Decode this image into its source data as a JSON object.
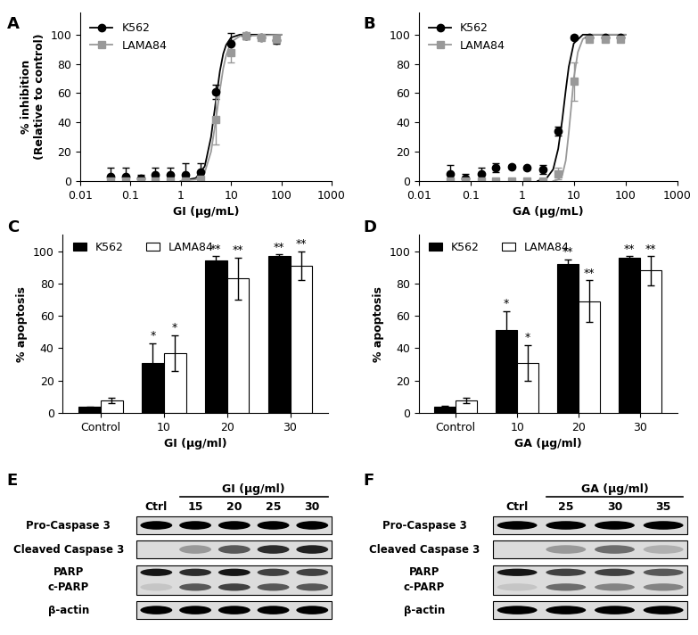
{
  "chart_data": [
    {
      "panel": "A",
      "type": "line",
      "x_label": "GI (µg/mL)",
      "y_label": "% inhibition\n(Relative to control)",
      "log": "x",
      "xlim": [
        0.01,
        1000
      ],
      "xticks": [
        0.01,
        0.1,
        1,
        10,
        100,
        1000
      ],
      "ylim": [
        0,
        115
      ],
      "yticks": [
        0,
        20,
        40,
        60,
        80,
        100
      ],
      "legend": "upper left",
      "x": [
        0.04,
        0.08,
        0.16,
        0.31,
        0.63,
        1.25,
        2.5,
        5,
        10,
        20,
        40,
        80
      ],
      "series": [
        {
          "name": "K562",
          "color": "#000000",
          "marker": "circle",
          "values": [
            3,
            3,
            2,
            4,
            4,
            4,
            6,
            61,
            94,
            99,
            98,
            96
          ],
          "errors": [
            6,
            6,
            2,
            5,
            5,
            8,
            6,
            5,
            7,
            2,
            1,
            2
          ],
          "fit_x": [
            1,
            2,
            3,
            4,
            5,
            6,
            7,
            8,
            10,
            15,
            100
          ],
          "fit_values": [
            0,
            2,
            10,
            30,
            55,
            75,
            87,
            93,
            98,
            100,
            100
          ]
        },
        {
          "name": "LAMA84",
          "color": "#999999",
          "marker": "square",
          "values": [
            0,
            0,
            0,
            0,
            0,
            0,
            1,
            42,
            88,
            99,
            98,
            97
          ],
          "errors": [
            0,
            0,
            0,
            0,
            0,
            0,
            2,
            17,
            7,
            1,
            1,
            1
          ],
          "fit_x": [
            1,
            2,
            3,
            4,
            5,
            6,
            7,
            8,
            10,
            15,
            100
          ],
          "fit_values": [
            0,
            1,
            6,
            20,
            42,
            62,
            77,
            86,
            95,
            99,
            100
          ]
        }
      ]
    },
    {
      "panel": "B",
      "type": "line",
      "x_label": "GA (µg/mL)",
      "y_label": "",
      "log": "x",
      "xlim": [
        0.01,
        1000
      ],
      "xticks": [
        0.01,
        0.1,
        1,
        10,
        100,
        1000
      ],
      "ylim": [
        0,
        115
      ],
      "yticks": [
        0,
        20,
        40,
        60,
        80,
        100
      ],
      "legend": "upper left",
      "x": [
        0.04,
        0.08,
        0.16,
        0.31,
        0.63,
        1.25,
        2.5,
        5,
        10,
        20,
        40,
        80
      ],
      "series": [
        {
          "name": "K562",
          "color": "#000000",
          "marker": "circle",
          "values": [
            5,
            2,
            5,
            9,
            10,
            9,
            8,
            34,
            98,
            98,
            98,
            98
          ],
          "errors": [
            6,
            3,
            4,
            3,
            1,
            1,
            3,
            3,
            1,
            1,
            1,
            1
          ],
          "fit_x": [
            2,
            3,
            4,
            5,
            6,
            7,
            8,
            10,
            15,
            100
          ],
          "fit_values": [
            0,
            2,
            8,
            22,
            42,
            62,
            78,
            94,
            100,
            100
          ]
        },
        {
          "name": "LAMA84",
          "color": "#999999",
          "marker": "square",
          "values": [
            0,
            0,
            0,
            0,
            0,
            0,
            0,
            5,
            68,
            97,
            97,
            97
          ],
          "errors": [
            0,
            0,
            0,
            0,
            0,
            0,
            1,
            4,
            13,
            2,
            1,
            1
          ],
          "fit_x": [
            4,
            5,
            6,
            7,
            8,
            9,
            10,
            12,
            15,
            20,
            100
          ],
          "fit_values": [
            0,
            1,
            4,
            14,
            33,
            52,
            70,
            88,
            97,
            100,
            100
          ]
        }
      ]
    },
    {
      "panel": "C",
      "type": "bar",
      "x_label": "GI (µg/ml)",
      "y_label": "% apoptosis",
      "categories": [
        "Control",
        "10",
        "20",
        "30"
      ],
      "ylim": [
        0,
        110
      ],
      "yticks": [
        0,
        20,
        40,
        60,
        80,
        100
      ],
      "legend": "upper left",
      "series": [
        {
          "name": "K562",
          "color": "#000000",
          "values": [
            3.5,
            31,
            94,
            97
          ],
          "errors": [
            0.5,
            12,
            3,
            1
          ],
          "annotations": [
            null,
            "*",
            "**",
            "**"
          ]
        },
        {
          "name": "LAMA84",
          "color": "#ffffff",
          "values": [
            7.5,
            37,
            83,
            91
          ],
          "errors": [
            1.5,
            11,
            13,
            9
          ],
          "annotations": [
            null,
            "*",
            "**",
            "**"
          ]
        }
      ]
    },
    {
      "panel": "D",
      "type": "bar",
      "x_label": "GA (µg/ml)",
      "y_label": "% apoptosis",
      "categories": [
        "Control",
        "10",
        "20",
        "30"
      ],
      "ylim": [
        0,
        110
      ],
      "yticks": [
        0,
        20,
        40,
        60,
        80,
        100
      ],
      "legend": "upper left",
      "series": [
        {
          "name": "K562",
          "color": "#000000",
          "values": [
            4,
            51,
            92,
            96
          ],
          "errors": [
            0.5,
            12,
            3,
            1
          ],
          "annotations": [
            null,
            "*",
            "**",
            "**"
          ]
        },
        {
          "name": "LAMA84",
          "color": "#ffffff",
          "values": [
            7.5,
            31,
            69,
            88
          ],
          "errors": [
            1.5,
            11,
            13,
            9
          ],
          "annotations": [
            null,
            "*",
            "**",
            "**"
          ]
        }
      ]
    }
  ],
  "blots": [
    {
      "panel": "E",
      "header": "GI (µg/ml)",
      "lanes": [
        "Ctrl",
        "15",
        "20",
        "25",
        "30"
      ],
      "rows": [
        {
          "labels": [
            "Pro-Caspase 3"
          ],
          "bands": [
            [
              1,
              1,
              1,
              1,
              1
            ]
          ]
        },
        {
          "labels": [
            "Cleaved Caspase 3"
          ],
          "bands": [
            [
              0,
              0.3,
              0.6,
              0.8,
              0.85
            ]
          ]
        },
        {
          "labels": [
            "PARP",
            "c-PARP"
          ],
          "bands": [
            [
              0.9,
              0.8,
              0.9,
              0.7,
              0.7
            ],
            [
              0.1,
              0.6,
              0.7,
              0.6,
              0.6
            ]
          ]
        },
        {
          "labels": [
            "β-actin"
          ],
          "bands": [
            [
              1,
              1,
              1,
              1,
              1
            ]
          ]
        }
      ]
    },
    {
      "panel": "F",
      "header": "GA (µg/ml)",
      "lanes": [
        "Ctrl",
        "25",
        "30",
        "35"
      ],
      "rows": [
        {
          "labels": [
            "Pro-Caspase 3"
          ],
          "bands": [
            [
              1,
              1,
              1,
              1
            ]
          ]
        },
        {
          "labels": [
            "Cleaved Caspase 3"
          ],
          "bands": [
            [
              0,
              0.3,
              0.5,
              0.2
            ]
          ]
        },
        {
          "labels": [
            "PARP",
            "c-PARP"
          ],
          "bands": [
            [
              0.9,
              0.7,
              0.7,
              0.6
            ],
            [
              0.1,
              0.5,
              0.4,
              0.4
            ]
          ]
        },
        {
          "labels": [
            "β-actin"
          ],
          "bands": [
            [
              1,
              1,
              1,
              1
            ]
          ]
        }
      ]
    }
  ]
}
